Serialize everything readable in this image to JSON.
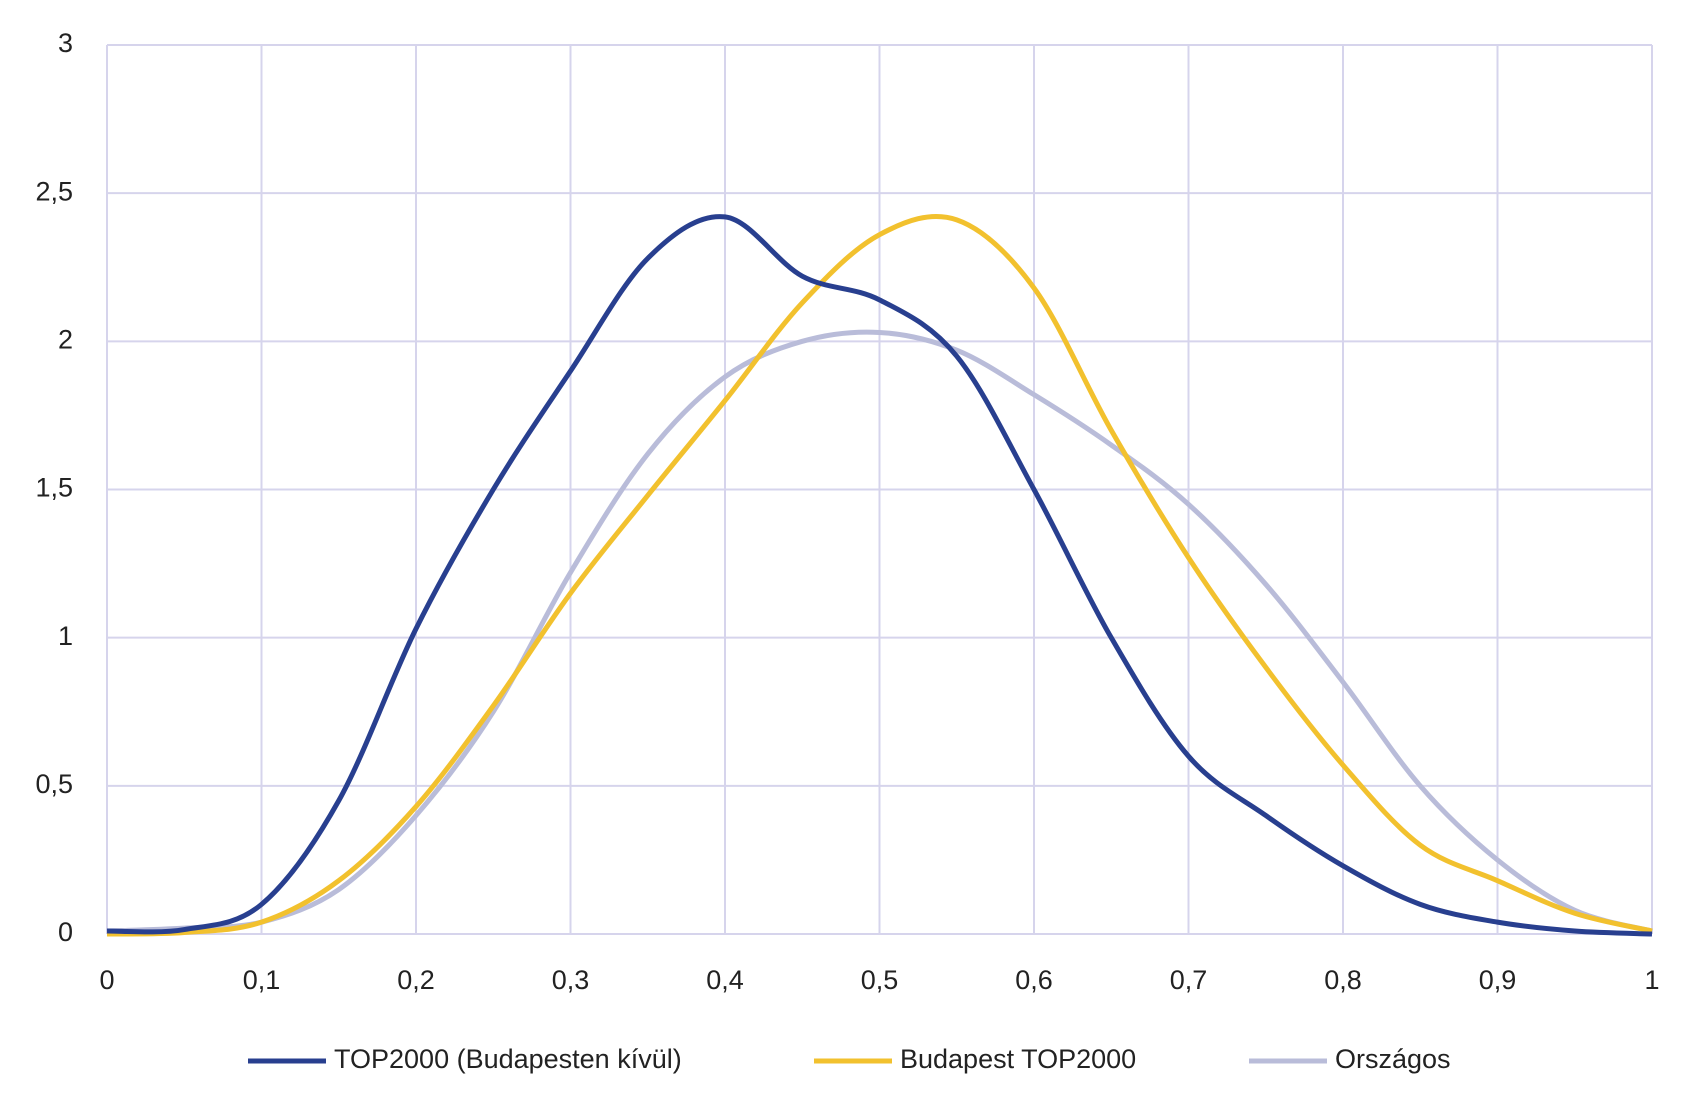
{
  "chart_data": {
    "type": "line",
    "x": [
      0,
      0.05,
      0.1,
      0.15,
      0.2,
      0.25,
      0.3,
      0.35,
      0.4,
      0.45,
      0.5,
      0.55,
      0.6,
      0.65,
      0.7,
      0.75,
      0.8,
      0.85,
      0.9,
      0.95,
      1
    ],
    "series": [
      {
        "name": "TOP2000 (Budapesten kívül)",
        "color": "#283f8f",
        "values": [
          0.01,
          0.015,
          0.1,
          0.45,
          1.03,
          1.5,
          1.9,
          2.28,
          2.42,
          2.22,
          2.14,
          1.95,
          1.5,
          1.0,
          0.6,
          0.4,
          0.23,
          0.1,
          0.04,
          0.01,
          0
        ]
      },
      {
        "name": "Budapest TOP2000",
        "color": "#f2c12e",
        "values": [
          0,
          0.005,
          0.04,
          0.18,
          0.43,
          0.77,
          1.15,
          1.48,
          1.8,
          2.13,
          2.36,
          2.41,
          2.18,
          1.7,
          1.27,
          0.9,
          0.57,
          0.3,
          0.18,
          0.07,
          0.01
        ]
      },
      {
        "name": "Országos",
        "color": "#b9bcd9",
        "values": [
          0.01,
          0.02,
          0.04,
          0.15,
          0.4,
          0.75,
          1.22,
          1.62,
          1.88,
          2.0,
          2.03,
          1.97,
          1.82,
          1.65,
          1.45,
          1.18,
          0.85,
          0.5,
          0.25,
          0.08,
          0.01
        ]
      }
    ],
    "xlim": [
      0,
      1
    ],
    "xticks": [
      0,
      {
        "value": 0.1,
        "label": "0,1"
      },
      {
        "value": 0.2,
        "label": "0,2"
      },
      {
        "value": 0.3,
        "label": "0,3"
      },
      {
        "value": 0.4,
        "label": "0,4"
      },
      {
        "value": 0.5,
        "label": "0,5"
      },
      {
        "value": 0.6,
        "label": "0,6"
      },
      {
        "value": 0.7,
        "label": "0,7"
      },
      {
        "value": 0.8,
        "label": "0,8"
      },
      {
        "value": 0.9,
        "label": "0,9"
      },
      1
    ],
    "ylim": [
      0,
      3
    ],
    "yticks": [
      0,
      {
        "value": 0.5,
        "label": "0,5"
      },
      1,
      {
        "value": 1.5,
        "label": "1,5"
      },
      2,
      {
        "value": 2.5,
        "label": "2,5"
      },
      3
    ],
    "grid": true,
    "legend": "bottom"
  }
}
